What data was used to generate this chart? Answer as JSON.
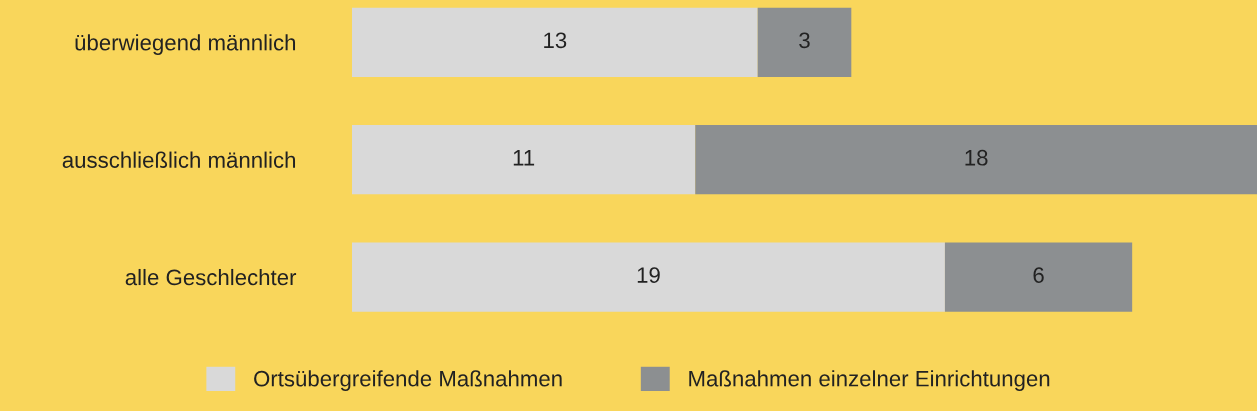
{
  "chart_data": {
    "type": "bar",
    "orientation": "horizontal",
    "stacked": true,
    "categories": [
      "überwiegend männlich",
      "ausschließlich männlich",
      "alle Geschlechter"
    ],
    "series": [
      {
        "name": "Ortsübergreifende Maßnahmen",
        "color": "#d9d9d9",
        "values": [
          13,
          11,
          19
        ]
      },
      {
        "name": "Maßnahmen einzelner Einrichtungen",
        "color": "#8c8f91",
        "values": [
          3,
          18,
          6
        ]
      }
    ],
    "xlim": [
      0,
      29
    ],
    "data_labels": true,
    "tick_labels": "y",
    "legend": "bottom",
    "grid": false
  }
}
